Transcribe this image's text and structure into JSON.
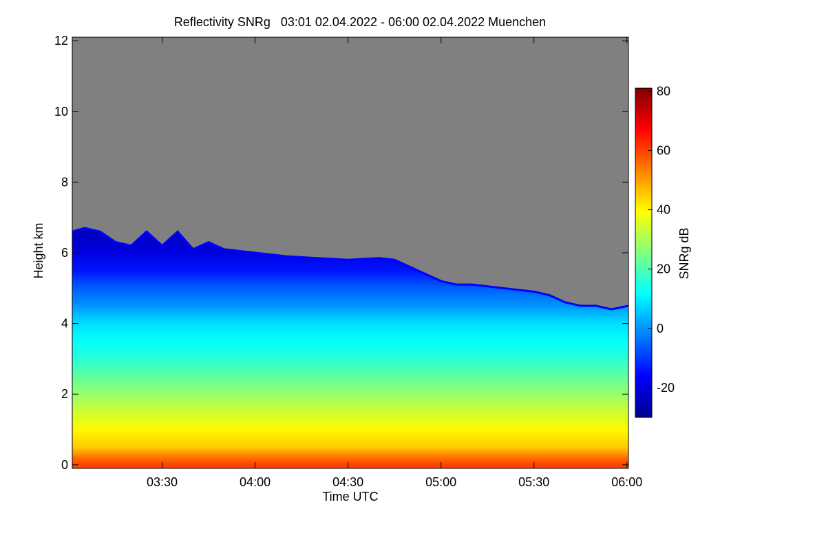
{
  "chart_data": {
    "type": "heatmap",
    "title": "Reflectivity SNRg   03:01 02.04.2022 - 06:00 02.04.2022 Muenchen",
    "xlabel": "Time UTC",
    "ylabel": "Height km",
    "colorbar_label": "SNRg dB",
    "x_range_minutes_utc": [
      181,
      360.5
    ],
    "x_ticks": [
      {
        "label": "03:30",
        "value": 210
      },
      {
        "label": "04:00",
        "value": 240
      },
      {
        "label": "04:30",
        "value": 270
      },
      {
        "label": "05:00",
        "value": 300
      },
      {
        "label": "05:30",
        "value": 330
      },
      {
        "label": "06:00",
        "value": 360
      }
    ],
    "ylim": [
      -0.1,
      12.1
    ],
    "y_ticks": [
      0,
      2,
      4,
      6,
      8,
      10,
      12
    ],
    "colorbar_range": [
      -30,
      81
    ],
    "colorbar_ticks": [
      -20,
      0,
      20,
      40,
      60,
      80
    ],
    "background_color": "#808080",
    "colormap": [
      "#00008f",
      "#0000ff",
      "#0080ff",
      "#00ffff",
      "#80ff80",
      "#ffff00",
      "#ff8000",
      "#ff0000",
      "#800000"
    ],
    "cloud_top_km": [
      {
        "t": 181,
        "h": 6.6
      },
      {
        "t": 185,
        "h": 6.7
      },
      {
        "t": 190,
        "h": 6.6
      },
      {
        "t": 195,
        "h": 6.3
      },
      {
        "t": 200,
        "h": 6.2
      },
      {
        "t": 205,
        "h": 6.6
      },
      {
        "t": 210,
        "h": 6.2
      },
      {
        "t": 215,
        "h": 6.6
      },
      {
        "t": 220,
        "h": 6.1
      },
      {
        "t": 225,
        "h": 6.3
      },
      {
        "t": 230,
        "h": 6.1
      },
      {
        "t": 240,
        "h": 6.0
      },
      {
        "t": 250,
        "h": 5.9
      },
      {
        "t": 260,
        "h": 5.85
      },
      {
        "t": 270,
        "h": 5.8
      },
      {
        "t": 280,
        "h": 5.85
      },
      {
        "t": 285,
        "h": 5.8
      },
      {
        "t": 290,
        "h": 5.6
      },
      {
        "t": 295,
        "h": 5.4
      },
      {
        "t": 300,
        "h": 5.2
      },
      {
        "t": 305,
        "h": 5.1
      },
      {
        "t": 310,
        "h": 5.1
      },
      {
        "t": 320,
        "h": 5.0
      },
      {
        "t": 330,
        "h": 4.9
      },
      {
        "t": 335,
        "h": 4.8
      },
      {
        "t": 340,
        "h": 4.6
      },
      {
        "t": 345,
        "h": 4.5
      },
      {
        "t": 350,
        "h": 4.5
      },
      {
        "t": 355,
        "h": 4.4
      },
      {
        "t": 360.5,
        "h": 4.5
      }
    ],
    "snr_profile_db": [
      {
        "h": 0.0,
        "db": 60
      },
      {
        "h": 0.2,
        "db": 55
      },
      {
        "h": 0.5,
        "db": 45
      },
      {
        "h": 1.0,
        "db": 40
      },
      {
        "h": 1.5,
        "db": 34
      },
      {
        "h": 2.0,
        "db": 28
      },
      {
        "h": 2.5,
        "db": 22
      },
      {
        "h": 3.0,
        "db": 16
      },
      {
        "h": 3.5,
        "db": 12
      },
      {
        "h": 4.0,
        "db": 8
      },
      {
        "h": 4.5,
        "db": 0
      },
      {
        "h": 5.0,
        "db": -6
      },
      {
        "h": 5.5,
        "db": -14
      },
      {
        "h": 6.0,
        "db": -20
      },
      {
        "h": 6.6,
        "db": -24
      }
    ]
  }
}
